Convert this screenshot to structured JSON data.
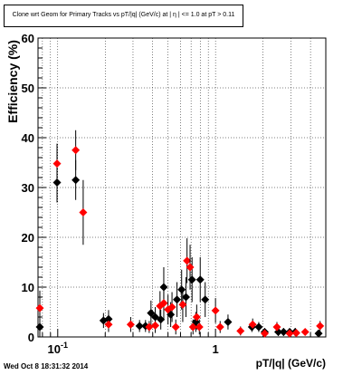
{
  "chart_data": {
    "type": "scatter",
    "title": "Clone wrt Geom for Primary Tracks vs pT/|q| (GeV/c) at | η | <= 1.0 at pT > 0.11",
    "xlabel": "pT/|q| (GeV/c)",
    "ylabel": "Efficiency (%)",
    "xscale": "log",
    "xlim": [
      0.075,
      5.0
    ],
    "ylim": [
      0,
      60
    ],
    "yticks": [
      0,
      10,
      20,
      30,
      40,
      50,
      60
    ],
    "xtick_labels": [
      {
        "value": 0.1,
        "label": "10^-1"
      },
      {
        "value": 1,
        "label": "1"
      }
    ],
    "grid": true,
    "series": [
      {
        "color": "#000000",
        "marker": "diamond",
        "points": [
          {
            "x": 0.077,
            "y": 2.0,
            "err": 3.5
          },
          {
            "x": 0.099,
            "y": 31.0,
            "err": 4.0
          },
          {
            "x": 0.13,
            "y": 31.5,
            "err": 4.0
          },
          {
            "x": 0.195,
            "y": 3.3,
            "err": 1.5
          },
          {
            "x": 0.21,
            "y": 3.6,
            "err": 1.8
          },
          {
            "x": 0.33,
            "y": 2.2,
            "err": 1.2
          },
          {
            "x": 0.36,
            "y": 2.2,
            "err": 1.2
          },
          {
            "x": 0.39,
            "y": 4.8,
            "err": 2.5
          },
          {
            "x": 0.415,
            "y": 4.0,
            "err": 2.0
          },
          {
            "x": 0.45,
            "y": 3.5,
            "err": 2.0
          },
          {
            "x": 0.47,
            "y": 10.0,
            "err": 4.0
          },
          {
            "x": 0.52,
            "y": 4.5,
            "err": 2.5
          },
          {
            "x": 0.57,
            "y": 7.5,
            "err": 3.5
          },
          {
            "x": 0.61,
            "y": 9.5,
            "err": 4.0
          },
          {
            "x": 0.65,
            "y": 8.0,
            "err": 4.0
          },
          {
            "x": 0.71,
            "y": 11.5,
            "err": 4.5
          },
          {
            "x": 0.75,
            "y": 3.0,
            "err": 2.0
          },
          {
            "x": 0.8,
            "y": 11.5,
            "err": 4.5
          },
          {
            "x": 0.86,
            "y": 7.5,
            "err": 3.5
          },
          {
            "x": 1.2,
            "y": 3.0,
            "err": 1.5
          },
          {
            "x": 1.7,
            "y": 2.0,
            "err": 1.0
          },
          {
            "x": 1.88,
            "y": 2.0,
            "err": 1.0
          },
          {
            "x": 2.05,
            "y": 1.0,
            "err": 0.8
          },
          {
            "x": 2.5,
            "y": 1.0,
            "err": 0.8
          },
          {
            "x": 2.7,
            "y": 1.0,
            "err": 0.8
          },
          {
            "x": 2.95,
            "y": 1.0,
            "err": 0.8
          },
          {
            "x": 3.2,
            "y": 1.0,
            "err": 0.8
          },
          {
            "x": 4.5,
            "y": 0.7,
            "err": 0.5
          }
        ]
      },
      {
        "color": "#ff0000",
        "marker": "diamond",
        "points": [
          {
            "x": 0.077,
            "y": 5.8,
            "err": 3.5
          },
          {
            "x": 0.099,
            "y": 34.8,
            "err": 4.0
          },
          {
            "x": 0.13,
            "y": 37.5,
            "err": 4.0
          },
          {
            "x": 0.145,
            "y": 25.0,
            "err": 6.5
          },
          {
            "x": 0.21,
            "y": 2.5,
            "err": 1.5
          },
          {
            "x": 0.29,
            "y": 2.5,
            "err": 1.5
          },
          {
            "x": 0.38,
            "y": 2.0,
            "err": 1.2
          },
          {
            "x": 0.415,
            "y": 2.3,
            "err": 1.5
          },
          {
            "x": 0.445,
            "y": 6.2,
            "err": 3.0
          },
          {
            "x": 0.47,
            "y": 6.8,
            "err": 3.5
          },
          {
            "x": 0.5,
            "y": 5.5,
            "err": 3.0
          },
          {
            "x": 0.53,
            "y": 6.0,
            "err": 3.0
          },
          {
            "x": 0.56,
            "y": 2.0,
            "err": 1.5
          },
          {
            "x": 0.62,
            "y": 6.5,
            "err": 3.5
          },
          {
            "x": 0.66,
            "y": 15.3,
            "err": 4.5
          },
          {
            "x": 0.69,
            "y": 14.0,
            "err": 4.5
          },
          {
            "x": 0.72,
            "y": 2.0,
            "err": 1.5
          },
          {
            "x": 0.76,
            "y": 4.0,
            "err": 2.5
          },
          {
            "x": 0.79,
            "y": 2.0,
            "err": 1.5
          },
          {
            "x": 1.0,
            "y": 5.3,
            "err": 2.5
          },
          {
            "x": 1.07,
            "y": 2.0,
            "err": 1.2
          },
          {
            "x": 1.44,
            "y": 1.2,
            "err": 0.9
          },
          {
            "x": 1.72,
            "y": 2.5,
            "err": 1.2
          },
          {
            "x": 2.05,
            "y": 0.7,
            "err": 0.6
          },
          {
            "x": 2.45,
            "y": 2.0,
            "err": 1.0
          },
          {
            "x": 2.95,
            "y": 0.7,
            "err": 0.5
          },
          {
            "x": 3.25,
            "y": 0.8,
            "err": 0.5
          },
          {
            "x": 3.7,
            "y": 1.0,
            "err": 0.6
          },
          {
            "x": 4.6,
            "y": 2.2,
            "err": 1.0
          }
        ]
      }
    ]
  },
  "footer": {
    "date": "Wed Oct  8 18:31:32 2014"
  }
}
